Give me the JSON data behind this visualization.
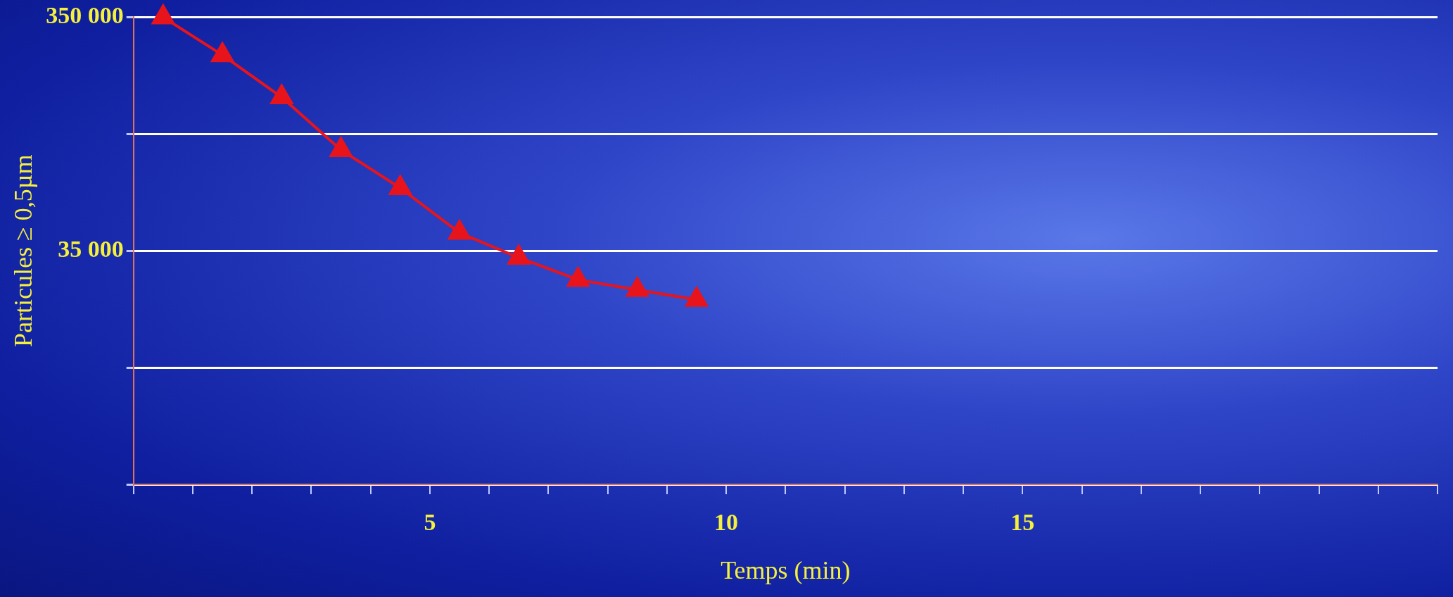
{
  "chart_data": {
    "type": "line",
    "xlabel": "Temps (min)",
    "ylabel": "Particules ≥ 0,5µm",
    "x": [
      0.5,
      1.5,
      2.5,
      3.5,
      4.5,
      5.5,
      6.5,
      7.5,
      8.5,
      9.5
    ],
    "series": [
      {
        "color": "#e8141c",
        "values": [
          350000,
          241000,
          159000,
          94600,
          65000,
          41800,
          32700,
          26300,
          23800,
          21600
        ]
      }
    ],
    "log": "y",
    "ylim": [
      3500,
      350000
    ],
    "yticks": [
      {
        "value": 3500,
        "label": null
      },
      {
        "value": 11068,
        "label": null
      },
      {
        "value": 35000,
        "label": "35 000"
      },
      {
        "value": 110680,
        "label": null
      },
      {
        "value": 350000,
        "label": "350 000"
      }
    ],
    "xlim": [
      0,
      22
    ],
    "xticks": [
      {
        "value": 0,
        "label": null
      },
      {
        "value": 1,
        "label": null
      },
      {
        "value": 2,
        "label": null
      },
      {
        "value": 3,
        "label": null
      },
      {
        "value": 4,
        "label": null
      },
      5,
      {
        "value": 6,
        "label": null
      },
      {
        "value": 7,
        "label": null
      },
      {
        "value": 8,
        "label": null
      },
      {
        "value": 9,
        "label": null
      },
      10,
      {
        "value": 11,
        "label": null
      },
      {
        "value": 12,
        "label": null
      },
      {
        "value": 13,
        "label": null
      },
      {
        "value": 14,
        "label": null
      },
      15,
      {
        "value": 16,
        "label": null
      },
      {
        "value": 17,
        "label": null
      },
      {
        "value": 18,
        "label": null
      },
      {
        "value": 19,
        "label": null
      },
      {
        "value": 20,
        "label": null
      },
      {
        "value": 21,
        "label": null
      },
      {
        "value": 22,
        "label": null
      }
    ],
    "grid": "y",
    "marker": "triangle",
    "line_style": "solid",
    "legend": false
  }
}
